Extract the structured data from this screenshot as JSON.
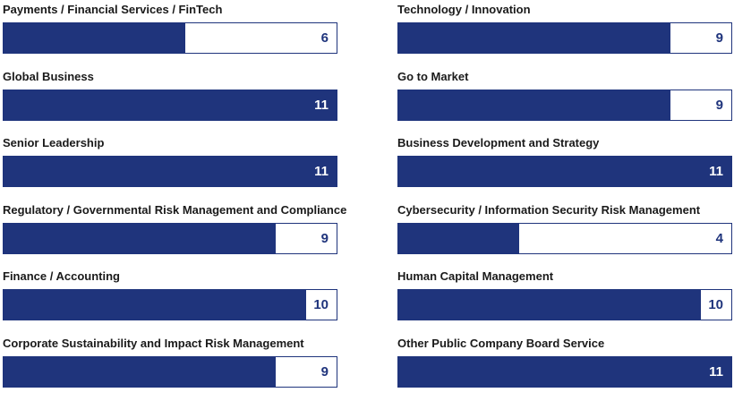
{
  "chart_data": {
    "type": "bar",
    "orientation": "horizontal",
    "xlim": [
      0,
      11
    ],
    "bar_color": "#1f347c",
    "value_labels": "inside-right",
    "categories": [
      "Payments / Financial Services / FinTech",
      "Technology / Innovation",
      "Global Business",
      "Go to Market",
      "Senior Leadership",
      "Business Development and Strategy",
      "Regulatory / Governmental Risk Management and Compliance",
      "Cybersecurity / Information Security Risk Management",
      "Finance / Accounting",
      "Human Capital Management",
      "Corporate Sustainability and Impact Risk Management",
      "Other Public Company Board Service"
    ],
    "values": [
      6,
      9,
      11,
      9,
      11,
      11,
      9,
      4,
      10,
      10,
      9,
      11
    ]
  }
}
